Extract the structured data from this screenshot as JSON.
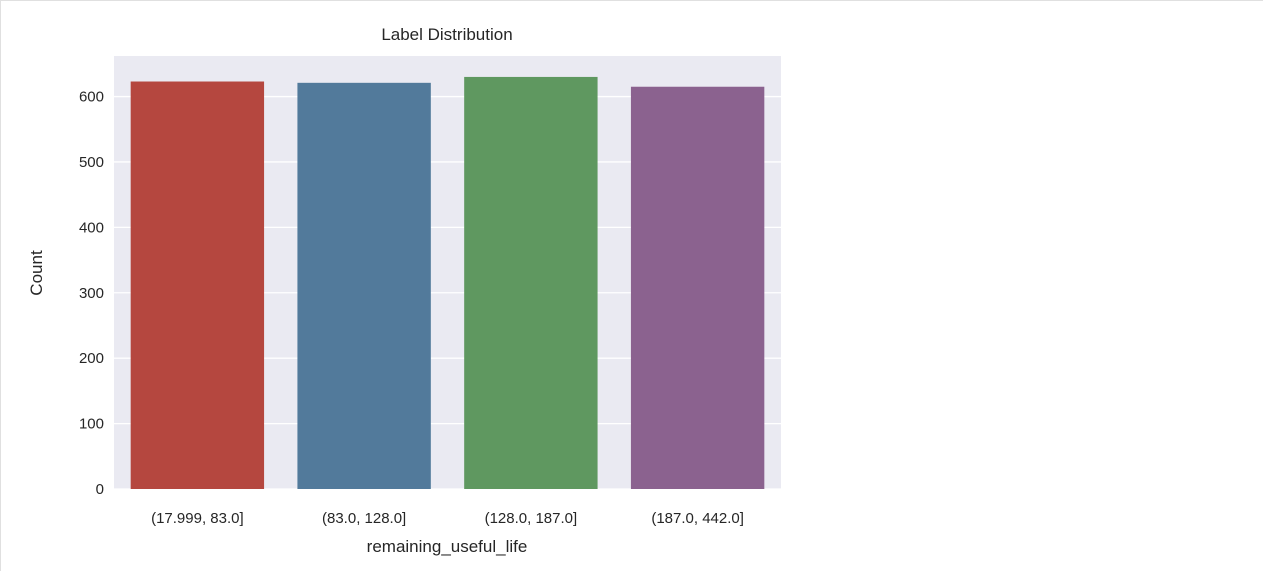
{
  "chart_data": {
    "type": "bar",
    "title": "Label Distribution",
    "xlabel": "remaining_useful_life",
    "ylabel": "Count",
    "categories": [
      "(17.999, 83.0]",
      "(83.0, 128.0]",
      "(128.0, 187.0]",
      "(187.0, 442.0]"
    ],
    "values": [
      623,
      621,
      630,
      615
    ],
    "colors": [
      "#b5473f",
      "#527a9b",
      "#5f9860",
      "#8b628f"
    ],
    "ylim": [
      0,
      662
    ],
    "yticks": [
      0,
      100,
      200,
      300,
      400,
      500,
      600
    ],
    "grid": true,
    "background": "#eaeaf2"
  }
}
